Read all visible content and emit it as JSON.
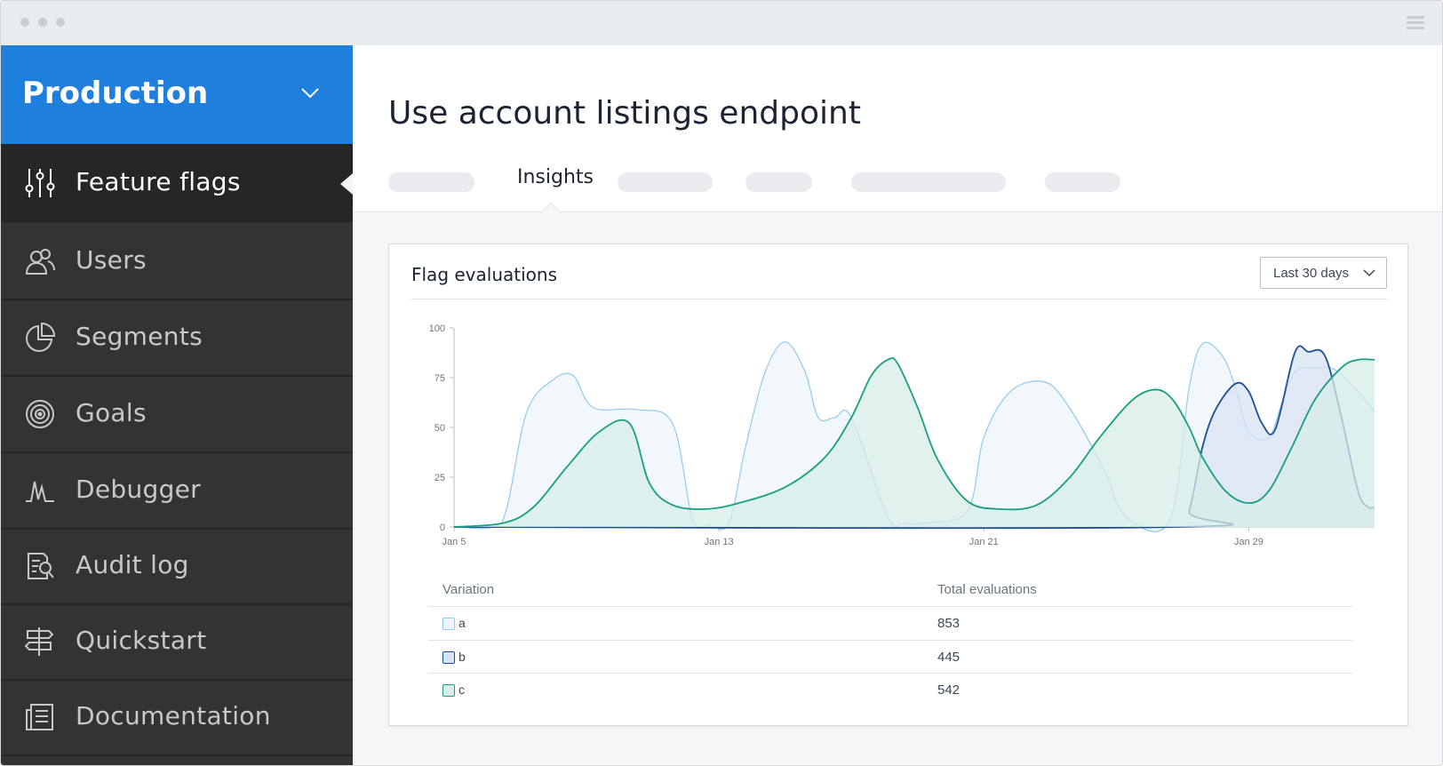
{
  "window": {
    "title": ""
  },
  "sidebar": {
    "environment": "Production",
    "items": [
      {
        "label": "Feature flags",
        "icon": "sliders-icon",
        "active": true
      },
      {
        "label": "Users",
        "icon": "users-icon",
        "active": false
      },
      {
        "label": "Segments",
        "icon": "pie-chart-icon",
        "active": false
      },
      {
        "label": "Goals",
        "icon": "target-icon",
        "active": false
      },
      {
        "label": "Debugger",
        "icon": "pulse-icon",
        "active": false
      },
      {
        "label": "Audit log",
        "icon": "audit-icon",
        "active": false
      },
      {
        "label": "Quickstart",
        "icon": "signpost-icon",
        "active": false
      },
      {
        "label": "Documentation",
        "icon": "docs-icon",
        "active": false
      }
    ]
  },
  "main": {
    "title": "Use account listings endpoint",
    "tabs": {
      "active": "Insights"
    }
  },
  "card": {
    "title": "Flag evaluations",
    "range": "Last 30 days"
  },
  "chart_data": {
    "type": "area",
    "title": "",
    "xlabel": "",
    "ylabel": "",
    "x_ticks": [
      "Jan 5",
      "Jan 13",
      "Jan 21",
      "Jan 29"
    ],
    "x_tick_days": [
      5,
      13,
      21,
      29
    ],
    "y_ticks": [
      0,
      25,
      50,
      75,
      100
    ],
    "xlim": [
      5,
      32.8
    ],
    "ylim": [
      0,
      100
    ],
    "series": [
      {
        "name": "a",
        "color": "#90c9ef",
        "fill": "#eef4fb",
        "x": [
          5,
          6.2,
          6.6,
          7.2,
          8.0,
          8.6,
          9.2,
          10.5,
          11.6,
          12.2,
          12.7,
          13.3,
          13.8,
          14.4,
          15.0,
          15.6,
          16.0,
          16.5,
          17.0,
          18.1,
          18.6,
          19.2,
          20.5,
          21.0,
          21.8,
          22.8,
          23.5,
          24.6,
          25.3,
          26.6,
          27.2,
          27.6,
          28.2,
          28.6,
          29.0,
          29.6,
          30.0,
          30.4,
          31.0,
          31.6,
          32.3,
          32.8
        ],
        "y": [
          0,
          0,
          10,
          58,
          74,
          76,
          60,
          59,
          52,
          4,
          1,
          2,
          40,
          78,
          93,
          78,
          55,
          55,
          55,
          5,
          2,
          2,
          8,
          45,
          68,
          73,
          62,
          30,
          5,
          3,
          70,
          92,
          86,
          70,
          48,
          45,
          62,
          78,
          80,
          79,
          68,
          58
        ]
      },
      {
        "name": "b",
        "color": "#1f4f91",
        "fill": "#d8e3f1",
        "x": [
          5,
          26.8,
          27.2,
          27.6,
          28.0,
          28.6,
          29.0,
          29.4,
          29.8,
          30.4,
          30.8,
          31.3,
          31.8,
          32.3,
          32.6,
          32.8
        ],
        "y": [
          0,
          0,
          8,
          40,
          59,
          72,
          68,
          52,
          49,
          88,
          88,
          86,
          55,
          18,
          10,
          10
        ]
      },
      {
        "name": "c",
        "color": "#1a9f7f",
        "fill": "#d7ede8",
        "x": [
          5,
          6.5,
          7.4,
          8.4,
          9.4,
          10.3,
          10.9,
          11.6,
          12.6,
          13.6,
          15.0,
          16.2,
          17.0,
          17.6,
          18.1,
          18.4,
          19.0,
          19.6,
          20.5,
          21.5,
          22.6,
          23.6,
          24.5,
          25.5,
          26.2,
          26.7,
          27.2,
          27.6,
          28.3,
          29.0,
          29.6,
          30.3,
          31.0,
          31.8,
          32.3,
          32.8
        ],
        "y": [
          0,
          2,
          10,
          30,
          48,
          52,
          22,
          11,
          9,
          12,
          20,
          35,
          55,
          76,
          84,
          82,
          60,
          34,
          13,
          9,
          11,
          25,
          45,
          64,
          69,
          64,
          50,
          35,
          18,
          12,
          18,
          40,
          64,
          80,
          84,
          84
        ]
      }
    ],
    "legend": "none"
  },
  "table": {
    "headers": [
      "Variation",
      "Total evaluations"
    ],
    "rows": [
      {
        "variation": "a",
        "total": "853",
        "swatch_border": "#90c9ef",
        "swatch_fill": "#eef4fb"
      },
      {
        "variation": "b",
        "total": "445",
        "swatch_border": "#1f4f91",
        "swatch_fill": "#d8e3f1"
      },
      {
        "variation": "c",
        "total": "542",
        "swatch_border": "#1a9f7f",
        "swatch_fill": "#d7ede8"
      }
    ]
  },
  "colors": {
    "accent": "#1f7fdc",
    "sidebar_bg": "#333333",
    "sidebar_active": "#262626"
  }
}
